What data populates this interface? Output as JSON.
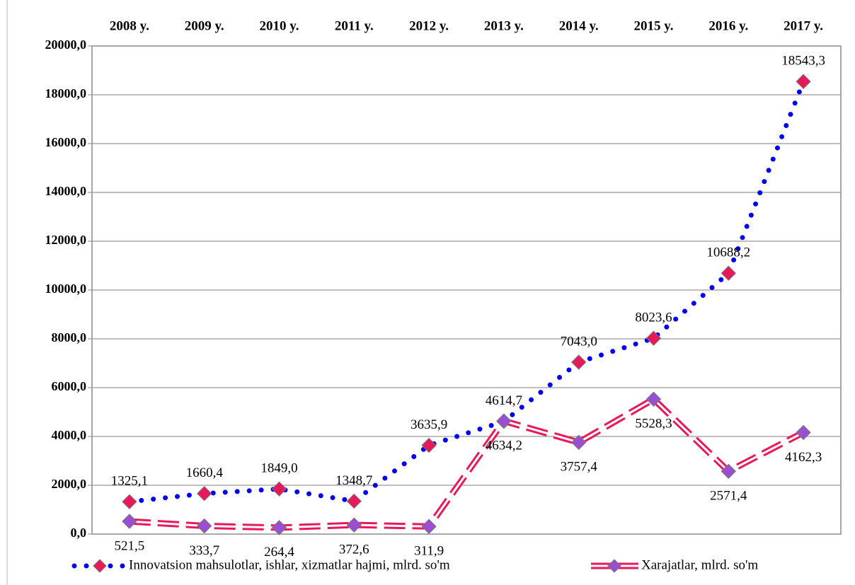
{
  "chart_data": {
    "type": "line",
    "categories": [
      "2008 y.",
      "2009 y.",
      "2010 y.",
      "2011 y.",
      "2012 y.",
      "2013 y.",
      "2014 y.",
      "2015 y.",
      "2016 y.",
      "2017 y."
    ],
    "series": [
      {
        "name": "Innovatsion mahsulotlar, ishlar, xizmatlar hajmi, mlrd. so'm",
        "color": "#0000ee",
        "marker_color": "#e8195a",
        "values": [
          1325.1,
          1660.4,
          1849.0,
          1348.7,
          3635.9,
          4614.7,
          7043.0,
          8023.6,
          10688.2,
          18543.3
        ],
        "value_labels": [
          "1325,1",
          "1660,4",
          "1849,0",
          "1348,7",
          "3635,9",
          "4614,7",
          "7043,0",
          "8023,6",
          "10688,2",
          "18543,3"
        ]
      },
      {
        "name": "Xarajatlar, mlrd. so'm",
        "color": "#e8195a",
        "marker_color": "#9b4fd0",
        "values": [
          521.5,
          333.7,
          264.4,
          372.6,
          311.9,
          4634.2,
          3757.4,
          5528.3,
          2571.4,
          4162.3
        ],
        "value_labels": [
          "521,5",
          "333,7",
          "264,4",
          "372,6",
          "311,9",
          "4634,2",
          "3757,4",
          "5528,3",
          "2571,4",
          "4162,3"
        ]
      }
    ],
    "ylim": [
      0,
      20000
    ],
    "yticks": [
      {
        "value": 0,
        "label": "0,0"
      },
      {
        "value": 2000,
        "label": "2000,0"
      },
      {
        "value": 4000,
        "label": "4000,0"
      },
      {
        "value": 6000,
        "label": "6000,0"
      },
      {
        "value": 8000,
        "label": "8000,0"
      },
      {
        "value": 10000,
        "label": "10000,0"
      },
      {
        "value": 12000,
        "label": "12000,0"
      },
      {
        "value": 14000,
        "label": "14000,0"
      },
      {
        "value": 16000,
        "label": "16000,0"
      },
      {
        "value": 18000,
        "label": "18000,0"
      },
      {
        "value": 20000,
        "label": "20000,0"
      }
    ],
    "grid": true
  }
}
